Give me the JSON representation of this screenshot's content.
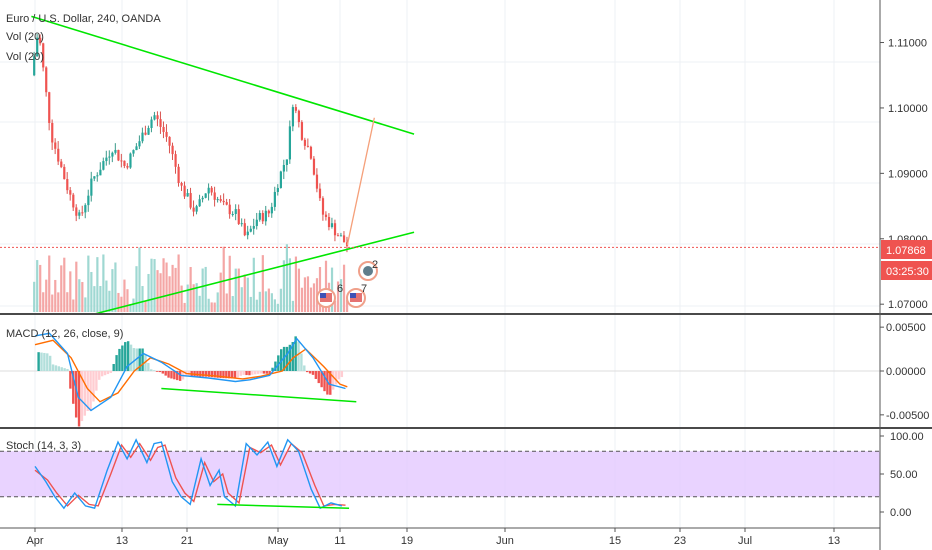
{
  "header": {
    "title": "Euro / U.S. Dollar, 240, OANDA",
    "vol1": "Vol (20)",
    "vol2": "Vol (20)"
  },
  "colors": {
    "up": "#26a69a",
    "down": "#ef5350",
    "upWick": "#3a9a8a",
    "downWick": "#d9534f",
    "trend": "#00e600",
    "projection": "#f5a07a",
    "priceLine": "#ef5350",
    "macd": "#2196f3",
    "signal": "#ff6d00",
    "stochK": "#2196f3",
    "stochD": "#ef5350",
    "stochBand": "#e1c4ff",
    "volUp": "#9fd8d2",
    "volDown": "#f4a6a5"
  },
  "price_tags": {
    "last": "1.07868",
    "countdown": "03:25:30"
  },
  "events": {
    "e1": "6",
    "e2": "7",
    "e3": "2"
  },
  "panes": {
    "macd": "MACD (12, 26, close, 9)",
    "stoch": "Stoch (14, 3, 3)"
  },
  "chart_data": {
    "type": "candlestick",
    "title": "Euro / U.S. Dollar, 240, OANDA",
    "x_tick_labels": [
      "Apr",
      "13",
      "21",
      "May",
      "11",
      "19",
      "Jun",
      "15",
      "23",
      "Jul",
      "13"
    ],
    "y_tick_labels_price": [
      "1.11000",
      "1.10000",
      "1.09000",
      "1.08000",
      "1.07000"
    ],
    "y_tick_labels_macd": [
      "0.00500",
      "0.00000",
      "-0.00500"
    ],
    "y_tick_labels_stoch": [
      "100.00",
      "50.00",
      "0.00"
    ],
    "price_range": [
      1.0685,
      1.1165
    ],
    "price_path": [
      [
        -0.2,
        1.105
      ],
      [
        0.2,
        1.112
      ],
      [
        0.9,
        1.096
      ],
      [
        1.9,
        1.087
      ],
      [
        2.5,
        1.083
      ],
      [
        3.2,
        1.089
      ],
      [
        4.3,
        1.094
      ],
      [
        5.0,
        1.091
      ],
      [
        5.8,
        1.095
      ],
      [
        6.6,
        1.099
      ],
      [
        7.4,
        1.095
      ],
      [
        8.1,
        1.088
      ],
      [
        8.9,
        1.084
      ],
      [
        9.6,
        1.088
      ],
      [
        10.4,
        1.085
      ],
      [
        11.1,
        1.084
      ],
      [
        11.7,
        1.08
      ],
      [
        12.3,
        1.083
      ],
      [
        13.0,
        1.084
      ],
      [
        13.5,
        1.089
      ],
      [
        14.0,
        1.093
      ],
      [
        14.3,
        1.101
      ],
      [
        14.8,
        1.096
      ],
      [
        15.3,
        1.093
      ],
      [
        15.9,
        1.084
      ],
      [
        16.7,
        1.081
      ],
      [
        17.3,
        1.079
      ]
    ],
    "last_price": 1.07868,
    "trend_upper": [
      [
        -0.2,
        1.114
      ],
      [
        21.0,
        1.096
      ]
    ],
    "trend_lower": [
      [
        3.3,
        1.0685
      ],
      [
        21.0,
        1.081
      ]
    ],
    "projection": [
      [
        17.3,
        1.079
      ],
      [
        18.8,
        1.0985
      ]
    ],
    "macd_range": [
      -0.0065,
      0.0065
    ],
    "macd_line": [
      [
        0.0,
        0.004
      ],
      [
        0.8,
        0.0043
      ],
      [
        1.8,
        0.002
      ],
      [
        2.4,
        -0.003
      ],
      [
        3.1,
        -0.0045
      ],
      [
        4.2,
        -0.003
      ],
      [
        5.1,
        0.0005
      ],
      [
        6.0,
        0.002
      ],
      [
        7.0,
        0.001
      ],
      [
        8.1,
        -0.0005
      ],
      [
        9.6,
        -0.0008
      ],
      [
        11.1,
        -0.0012
      ],
      [
        11.9,
        -0.001
      ],
      [
        13.0,
        -0.0005
      ],
      [
        14.0,
        0.002
      ],
      [
        14.5,
        0.0037
      ],
      [
        15.4,
        0.0015
      ],
      [
        16.3,
        -0.0015
      ],
      [
        17.2,
        -0.002
      ]
    ],
    "macd_signal": [
      [
        0.0,
        0.003
      ],
      [
        1.0,
        0.0035
      ],
      [
        2.0,
        0.0015
      ],
      [
        2.9,
        -0.002
      ],
      [
        3.6,
        -0.0035
      ],
      [
        4.6,
        -0.0025
      ],
      [
        5.5,
        0.0
      ],
      [
        6.4,
        0.0015
      ],
      [
        7.4,
        0.0008
      ],
      [
        8.4,
        -0.0003
      ],
      [
        10.2,
        -0.0006
      ],
      [
        11.5,
        -0.0009
      ],
      [
        12.5,
        -0.0006
      ],
      [
        13.7,
        0.0
      ],
      [
        14.3,
        0.0015
      ],
      [
        15.0,
        0.0025
      ],
      [
        16.0,
        0.0005
      ],
      [
        16.9,
        -0.0015
      ],
      [
        17.3,
        -0.0018
      ]
    ],
    "macd_divergence_line": [
      [
        7.0,
        -0.002
      ],
      [
        17.8,
        -0.0035
      ]
    ],
    "stoch_k": [
      [
        0.0,
        60
      ],
      [
        0.6,
        40
      ],
      [
        1.1,
        20
      ],
      [
        1.6,
        5
      ],
      [
        2.2,
        25
      ],
      [
        2.8,
        8
      ],
      [
        3.3,
        5
      ],
      [
        4.0,
        55
      ],
      [
        4.6,
        92
      ],
      [
        5.1,
        70
      ],
      [
        5.6,
        95
      ],
      [
        6.2,
        65
      ],
      [
        6.6,
        90
      ],
      [
        7.0,
        92
      ],
      [
        7.6,
        40
      ],
      [
        8.1,
        20
      ],
      [
        8.6,
        10
      ],
      [
        9.2,
        70
      ],
      [
        9.7,
        35
      ],
      [
        10.2,
        55
      ],
      [
        10.5,
        20
      ],
      [
        11.1,
        8
      ],
      [
        11.7,
        90
      ],
      [
        12.3,
        75
      ],
      [
        12.9,
        92
      ],
      [
        13.4,
        60
      ],
      [
        14.0,
        95
      ],
      [
        14.6,
        80
      ],
      [
        15.3,
        30
      ],
      [
        15.8,
        5
      ],
      [
        16.4,
        12
      ],
      [
        17.0,
        8
      ]
    ],
    "stoch_d": [
      [
        0.0,
        55
      ],
      [
        0.7,
        42
      ],
      [
        1.2,
        25
      ],
      [
        1.8,
        8
      ],
      [
        2.4,
        22
      ],
      [
        3.0,
        10
      ],
      [
        3.5,
        8
      ],
      [
        4.2,
        50
      ],
      [
        4.8,
        88
      ],
      [
        5.3,
        72
      ],
      [
        5.8,
        90
      ],
      [
        6.4,
        68
      ],
      [
        6.8,
        85
      ],
      [
        7.2,
        88
      ],
      [
        7.8,
        45
      ],
      [
        8.3,
        25
      ],
      [
        8.8,
        14
      ],
      [
        9.4,
        65
      ],
      [
        9.9,
        40
      ],
      [
        10.4,
        50
      ],
      [
        10.7,
        25
      ],
      [
        11.3,
        12
      ],
      [
        11.9,
        85
      ],
      [
        12.5,
        78
      ],
      [
        13.1,
        88
      ],
      [
        13.6,
        62
      ],
      [
        14.2,
        90
      ],
      [
        14.8,
        78
      ],
      [
        15.5,
        35
      ],
      [
        16.0,
        8
      ],
      [
        16.6,
        10
      ],
      [
        17.2,
        9
      ]
    ],
    "stoch_divergence_line": [
      [
        10.1,
        10
      ],
      [
        17.4,
        5
      ]
    ],
    "stoch_levels": [
      80,
      20
    ],
    "stoch_range": [
      0,
      100
    ]
  }
}
